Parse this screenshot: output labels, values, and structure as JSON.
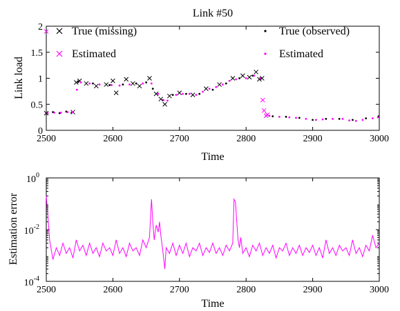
{
  "colors": {
    "true_series": "#000000",
    "estimated_series": "#ff00ff",
    "axes": "#000000"
  },
  "chart_data": [
    {
      "type": "scatter",
      "title": "Link #50",
      "xlabel": "Time",
      "ylabel": "Link load",
      "xlim": [
        2500,
        3000
      ],
      "ylim": [
        0,
        2
      ],
      "xticks": [
        "2500",
        "2600",
        "2700",
        "2800",
        "2900",
        "3000"
      ],
      "yticks": [
        "0",
        "0.5",
        "1",
        "1.5",
        "2"
      ],
      "legend": [
        "True (missing)",
        "Estimated",
        "True (observed)",
        "Estimated"
      ],
      "legend_position": "top",
      "series": [
        {
          "name": "True (missing)",
          "marker": "x",
          "color": "#000000",
          "x": [
            2500,
            2540,
            2545,
            2550,
            2560,
            2575,
            2590,
            2600,
            2605,
            2620,
            2630,
            2640,
            2655,
            2665,
            2672,
            2678,
            2685,
            2700,
            2720,
            2740,
            2760,
            2780,
            2795,
            2805,
            2815,
            2820,
            2824
          ],
          "y": [
            0.33,
            0.35,
            0.92,
            0.95,
            0.9,
            0.85,
            0.88,
            0.95,
            0.72,
            0.98,
            0.9,
            0.85,
            1.0,
            0.7,
            0.6,
            0.5,
            0.66,
            0.72,
            0.68,
            0.8,
            0.88,
            1.0,
            1.05,
            1.02,
            1.12,
            0.98,
            1.0
          ]
        },
        {
          "name": "Estimated",
          "marker": "x",
          "color": "#ff00ff",
          "x": [
            2500,
            2825,
            2827,
            2830,
            2832
          ],
          "y": [
            1.9,
            0.58,
            0.38,
            0.28,
            0.3
          ]
        },
        {
          "name": "True (observed)",
          "marker": "dot",
          "color": "#000000",
          "x": [
            2501,
            2510,
            2520,
            2530,
            2538,
            2548,
            2570,
            2595,
            2615,
            2635,
            2650,
            2660,
            2675,
            2690,
            2710,
            2730,
            2750,
            2770,
            2790,
            2810,
            2822,
            2840,
            2860,
            2880,
            2900,
            2920,
            2940,
            2960,
            2980,
            2999
          ],
          "y": [
            0.32,
            0.35,
            0.33,
            0.36,
            0.34,
            0.93,
            0.9,
            0.87,
            0.88,
            0.9,
            0.92,
            0.8,
            0.58,
            0.68,
            0.7,
            0.7,
            0.78,
            0.9,
            1.0,
            1.05,
            1.0,
            0.27,
            0.26,
            0.24,
            0.2,
            0.22,
            0.22,
            0.2,
            0.23,
            0.27
          ]
        },
        {
          "name": "Estimated",
          "marker": "dot",
          "color": "#ff00ff",
          "x": [
            2502,
            2512,
            2522,
            2532,
            2539,
            2546,
            2552,
            2565,
            2580,
            2598,
            2610,
            2625,
            2645,
            2658,
            2668,
            2676,
            2682,
            2695,
            2705,
            2715,
            2725,
            2735,
            2745,
            2755,
            2765,
            2775,
            2785,
            2800,
            2812,
            2821,
            2835,
            2850,
            2865,
            2875,
            2890,
            2905,
            2915,
            2930,
            2945,
            2955,
            2965,
            2975,
            2990,
            2998
          ],
          "y": [
            0.33,
            0.34,
            0.34,
            0.35,
            0.35,
            0.78,
            0.92,
            0.9,
            0.88,
            0.87,
            0.86,
            0.88,
            0.9,
            0.9,
            0.7,
            0.58,
            0.57,
            0.68,
            0.7,
            0.7,
            0.68,
            0.74,
            0.8,
            0.83,
            0.88,
            0.95,
            0.98,
            1.0,
            1.05,
            1.0,
            0.28,
            0.26,
            0.25,
            0.24,
            0.22,
            0.2,
            0.21,
            0.22,
            0.22,
            0.19,
            0.18,
            0.2,
            0.23,
            0.25
          ]
        }
      ]
    },
    {
      "type": "line",
      "title": "",
      "xlabel": "Time",
      "ylabel": "Estimation error",
      "xlim": [
        2500,
        3000
      ],
      "ylim": [
        0.0001,
        1
      ],
      "yscale": "log",
      "xticks": [
        "2500",
        "2600",
        "2700",
        "2800",
        "2900",
        "3000"
      ],
      "yticks": [
        {
          "base": "10",
          "exp": "0"
        },
        {
          "base": "10",
          "exp": "-2"
        },
        {
          "base": "10",
          "exp": "-4"
        }
      ],
      "series": [
        {
          "name": "",
          "color": "#ff00ff",
          "x": [
            2500,
            2502,
            2505,
            2510,
            2515,
            2520,
            2525,
            2530,
            2535,
            2540,
            2545,
            2550,
            2555,
            2560,
            2565,
            2570,
            2575,
            2580,
            2585,
            2590,
            2595,
            2600,
            2605,
            2610,
            2615,
            2620,
            2625,
            2630,
            2635,
            2640,
            2645,
            2650,
            2655,
            2658,
            2660,
            2662,
            2665,
            2668,
            2670,
            2672,
            2675,
            2678,
            2680,
            2685,
            2690,
            2695,
            2700,
            2705,
            2710,
            2715,
            2720,
            2725,
            2730,
            2735,
            2740,
            2745,
            2750,
            2755,
            2760,
            2765,
            2770,
            2775,
            2780,
            2782,
            2784,
            2786,
            2788,
            2790,
            2792,
            2795,
            2800,
            2805,
            2810,
            2815,
            2820,
            2825,
            2830,
            2835,
            2840,
            2845,
            2850,
            2855,
            2860,
            2865,
            2870,
            2875,
            2880,
            2885,
            2890,
            2895,
            2900,
            2905,
            2910,
            2915,
            2920,
            2925,
            2930,
            2935,
            2940,
            2945,
            2950,
            2955,
            2960,
            2965,
            2970,
            2975,
            2980,
            2985,
            2990,
            2995,
            3000
          ],
          "y": [
            0.2,
            0.05,
            0.004,
            0.0007,
            0.002,
            0.001,
            0.003,
            0.0012,
            0.002,
            0.0008,
            0.004,
            0.0015,
            0.0025,
            0.001,
            0.003,
            0.0012,
            0.002,
            0.0009,
            0.003,
            0.0015,
            0.002,
            0.001,
            0.004,
            0.0012,
            0.002,
            0.0009,
            0.003,
            0.0015,
            0.002,
            0.001,
            0.004,
            0.002,
            0.005,
            0.15,
            0.02,
            0.004,
            0.015,
            0.008,
            0.02,
            0.006,
            0.0015,
            0.0003,
            0.002,
            0.0012,
            0.003,
            0.001,
            0.0025,
            0.0012,
            0.003,
            0.0009,
            0.002,
            0.0015,
            0.003,
            0.001,
            0.002,
            0.0013,
            0.003,
            0.0012,
            0.002,
            0.001,
            0.0025,
            0.0015,
            0.003,
            0.15,
            0.12,
            0.02,
            0.004,
            0.002,
            0.005,
            0.0012,
            0.002,
            0.0009,
            0.0025,
            0.0015,
            0.003,
            0.001,
            0.002,
            0.0012,
            0.0025,
            0.0008,
            0.002,
            0.0015,
            0.003,
            0.001,
            0.002,
            0.0012,
            0.0025,
            0.001,
            0.002,
            0.0013,
            0.0025,
            0.001,
            0.002,
            0.0008,
            0.004,
            0.0012,
            0.002,
            0.001,
            0.0025,
            0.0015,
            0.002,
            0.001,
            0.004,
            0.0012,
            0.002,
            0.0009,
            0.0025,
            0.0015,
            0.006,
            0.002,
            0.003
          ]
        }
      ]
    }
  ]
}
